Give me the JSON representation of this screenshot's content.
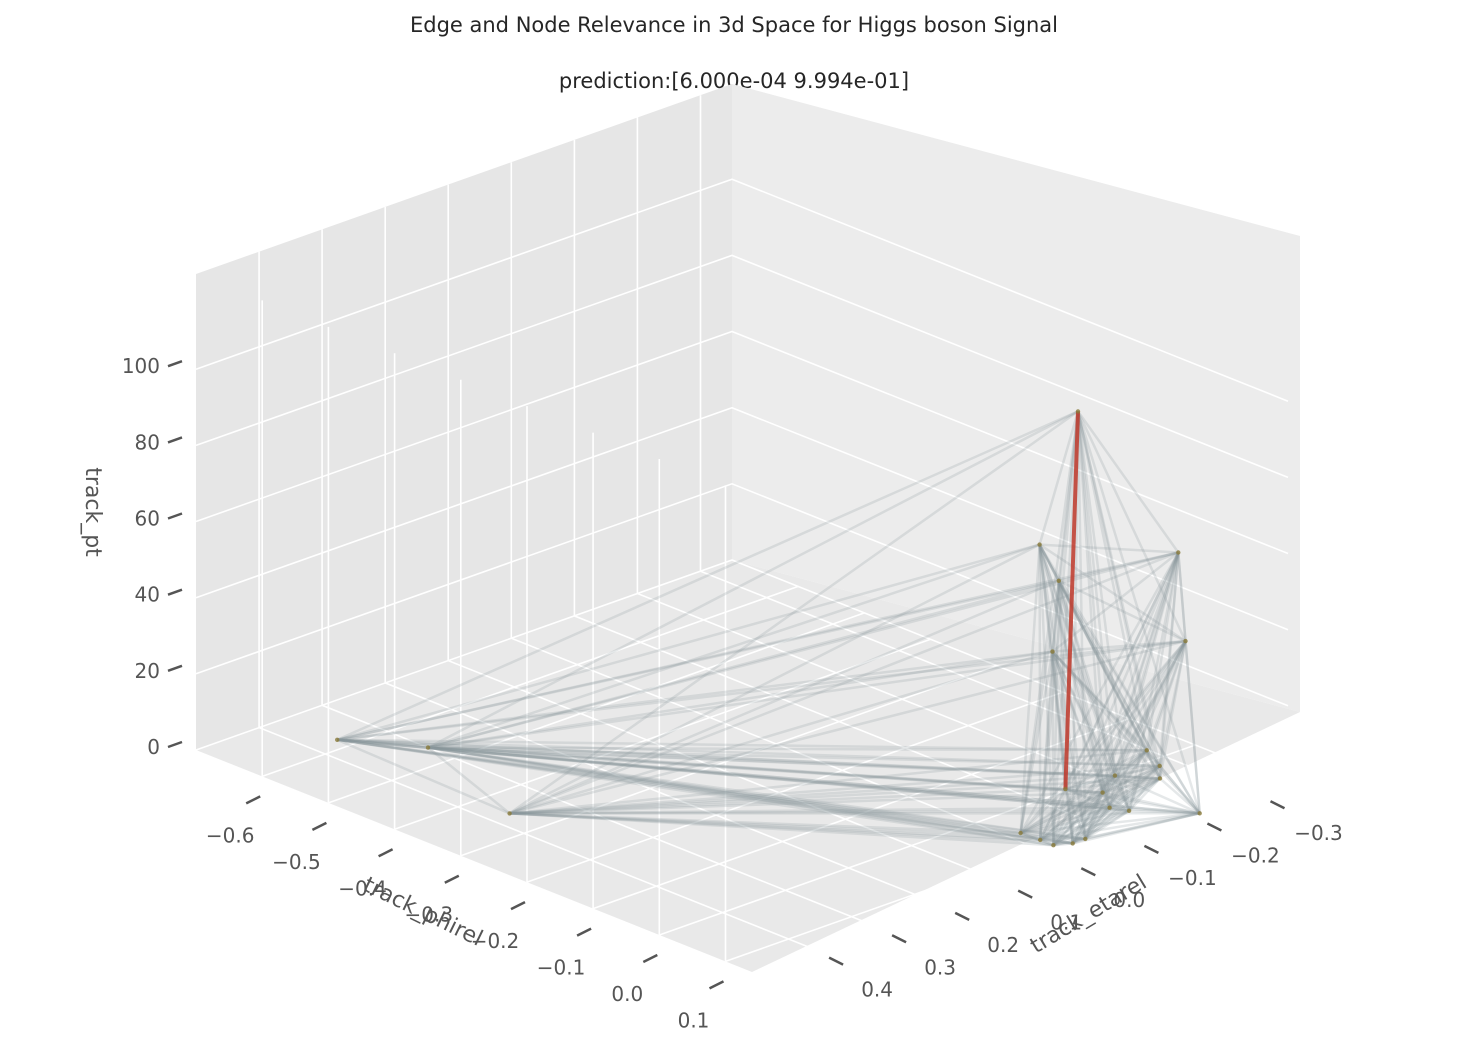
{
  "chart_data": {
    "type": "3d-scatter-graph",
    "title": "Edge and Node Relevance in 3d Space for Higgs boson Signal",
    "subtitle": "prediction:[6.000e-04 9.994e-01]",
    "xlabel": "track_phirel",
    "ylabel": "track_etarel",
    "zlabel": "track_pt",
    "x_ticks": [
      "−0.6",
      "−0.5",
      "−0.4",
      "−0.3",
      "−0.2",
      "−0.1",
      "0.0",
      "0.1"
    ],
    "y_ticks": [
      "0.4",
      "0.3",
      "0.2",
      "0.1",
      "0.0",
      "−0.1",
      "−0.2",
      "−0.3"
    ],
    "z_ticks": [
      "0",
      "20",
      "40",
      "60",
      "80",
      "100"
    ],
    "nodes": [
      {
        "phirel": 0.08,
        "etarel": -0.08,
        "pt": 109
      },
      {
        "phirel": 0.06,
        "etarel": -0.04,
        "pt": 75
      },
      {
        "phirel": 0.07,
        "etarel": -0.06,
        "pt": 65
      },
      {
        "phirel": 0.07,
        "etarel": -0.05,
        "pt": 47
      },
      {
        "phirel": 0.08,
        "etarel": -0.06,
        "pt": 11
      },
      {
        "phirel": 0.06,
        "etarel": -0.26,
        "pt": 60
      },
      {
        "phirel": 0.09,
        "etarel": -0.24,
        "pt": 40
      },
      {
        "phirel": 0.06,
        "etarel": -0.21,
        "pt": 11
      },
      {
        "phirel": 0.07,
        "etarel": -0.22,
        "pt": 7
      },
      {
        "phirel": 0.08,
        "etarel": -0.21,
        "pt": 5
      },
      {
        "phirel": 0.05,
        "etarel": -0.17,
        "pt": 6
      },
      {
        "phirel": 0.06,
        "etarel": -0.14,
        "pt": 4
      },
      {
        "phirel": 0.08,
        "etarel": -0.13,
        "pt": 2
      },
      {
        "phirel": 0.1,
        "etarel": -0.14,
        "pt": 2
      },
      {
        "phirel": 0.14,
        "etarel": -0.21,
        "pt": 0
      },
      {
        "phirel": 0.06,
        "etarel": -0.01,
        "pt": 1
      },
      {
        "phirel": 0.08,
        "etarel": -0.02,
        "pt": 0
      },
      {
        "phirel": 0.1,
        "etarel": -0.02,
        "pt": 0
      },
      {
        "phirel": 0.11,
        "etarel": -0.04,
        "pt": 0
      },
      {
        "phirel": 0.11,
        "etarel": -0.06,
        "pt": 0
      },
      {
        "phirel": -0.62,
        "etarel": 0.36,
        "pt": 0
      },
      {
        "phirel": -0.54,
        "etarel": 0.3,
        "pt": 0
      },
      {
        "phirel": -0.35,
        "etarel": 0.37,
        "pt": 0
      }
    ],
    "highlighted_edges": [
      [
        0,
        4
      ]
    ],
    "edge_color": "#8a9599",
    "highlight_color": "#c0392b",
    "node_color": "#8a7a3a"
  }
}
